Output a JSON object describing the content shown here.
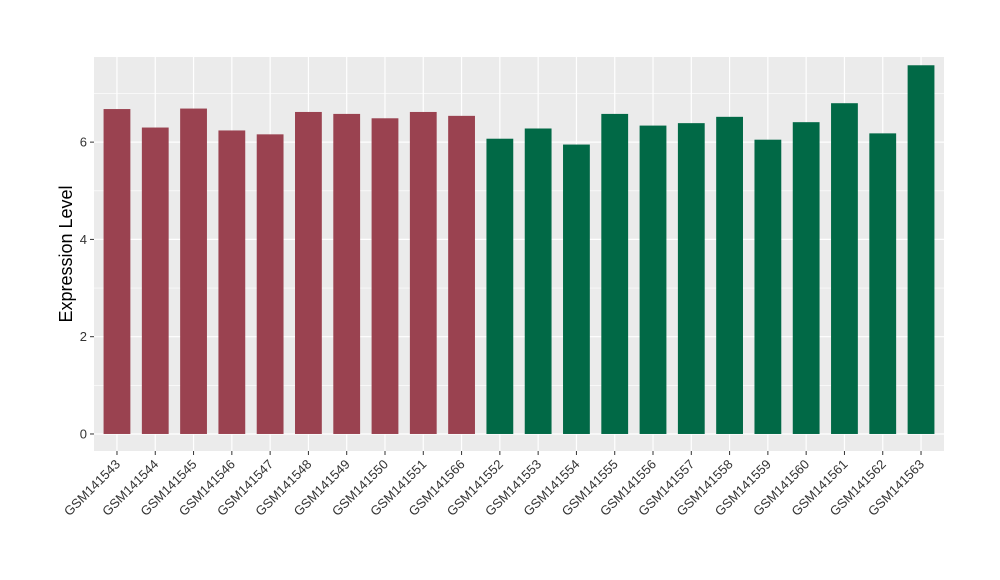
{
  "chart_data": {
    "type": "bar",
    "title": "",
    "xlabel": "",
    "ylabel": "Expression Level",
    "ylim": [
      -0.35,
      7.75
    ],
    "yticks": [
      0,
      2,
      4,
      6
    ],
    "grid": true,
    "categories": [
      "GSM141543",
      "GSM141544",
      "GSM141545",
      "GSM141546",
      "GSM141547",
      "GSM141548",
      "GSM141549",
      "GSM141550",
      "GSM141551",
      "GSM141566",
      "GSM141552",
      "GSM141553",
      "GSM141554",
      "GSM141555",
      "GSM141556",
      "GSM141557",
      "GSM141558",
      "GSM141559",
      "GSM141560",
      "GSM141561",
      "GSM141562",
      "GSM141563"
    ],
    "values": [
      6.68,
      6.3,
      6.69,
      6.24,
      6.16,
      6.62,
      6.58,
      6.49,
      6.62,
      6.54,
      6.07,
      6.28,
      5.95,
      6.58,
      6.34,
      6.39,
      6.52,
      6.05,
      6.41,
      6.8,
      6.18,
      7.58
    ],
    "groups": [
      0,
      0,
      0,
      0,
      0,
      0,
      0,
      0,
      0,
      0,
      1,
      1,
      1,
      1,
      1,
      1,
      1,
      1,
      1,
      1,
      1,
      1
    ],
    "colors": [
      "#9a4250",
      "#016946"
    ],
    "panel_background": "#ebebeb",
    "gridline_color": "#ffffff"
  }
}
